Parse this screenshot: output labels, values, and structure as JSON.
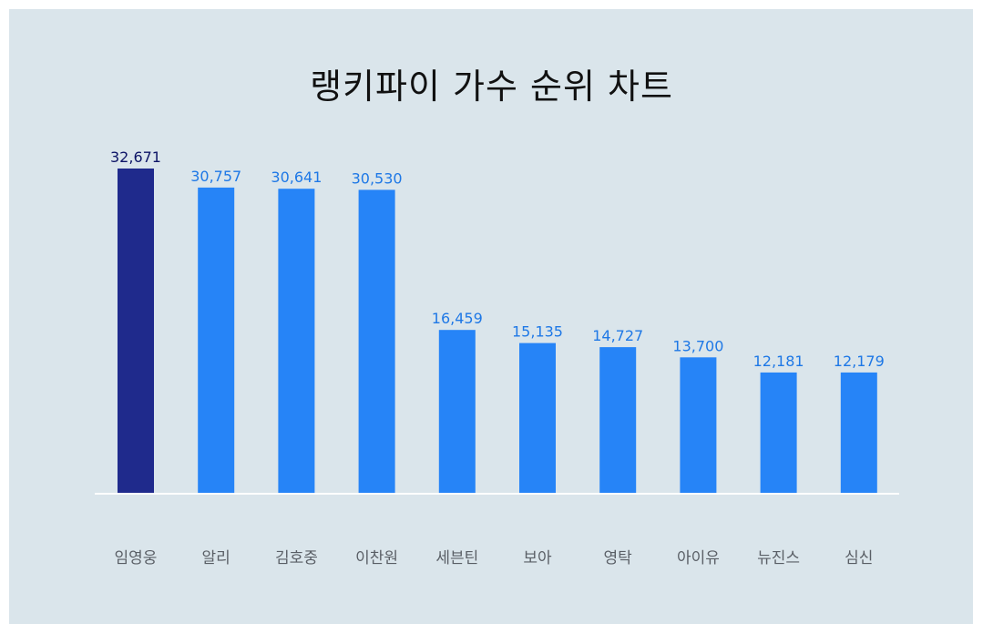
{
  "colors": {
    "background": "#dae5eb",
    "highlight_bar": "#1f2a8c",
    "bar": "#2684f7",
    "highlight_label": "#0d1466",
    "label": "#1e78e6",
    "baseline": "#ffffff",
    "category_text": "#5a5f66"
  },
  "chart_data": {
    "type": "bar",
    "title": "랭키파이 가수 순위 차트",
    "xlabel": "",
    "ylabel": "",
    "categories": [
      "임영웅",
      "알리",
      "김호중",
      "이찬원",
      "세븐틴",
      "보아",
      "영탁",
      "아이유",
      "뉴진스",
      "심신"
    ],
    "values": [
      32671,
      30757,
      30641,
      30530,
      16459,
      15135,
      14727,
      13700,
      12181,
      12179
    ],
    "value_labels": [
      "32,671",
      "30,757",
      "30,641",
      "30,530",
      "16,459",
      "15,135",
      "14,727",
      "13,700",
      "12,181",
      "12,179"
    ],
    "highlight_index": 0,
    "ylim": [
      0,
      32671
    ],
    "grid": false,
    "legend": "none"
  }
}
